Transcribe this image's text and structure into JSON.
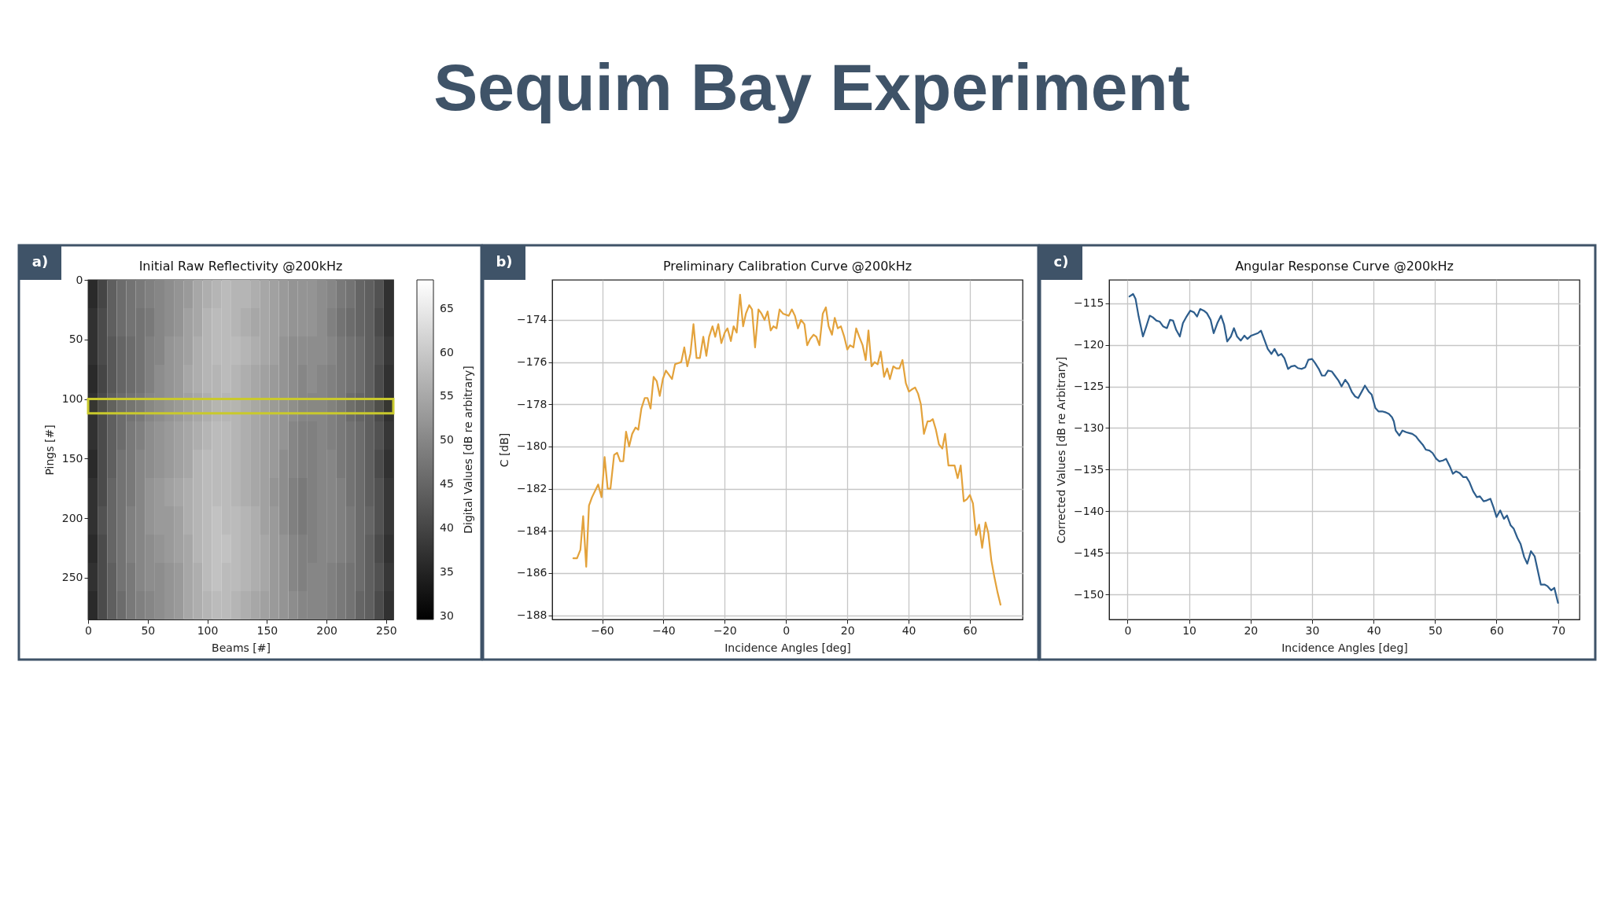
{
  "chart_data": [
    {
      "type": "other",
      "title": "Sequim Bay Experiment"
    },
    {
      "type": "heatmap",
      "title": "Initial Raw Reflectivity @200kHz",
      "xlabel": "Beams [#]",
      "ylabel": "Pings [#]",
      "clabel": "Digital Values [dB re arbitrary]",
      "annotations": [
        "a)"
      ],
      "xlim": [
        0,
        256
      ],
      "xticks": [
        0,
        50,
        100,
        150,
        200,
        250
      ],
      "ylim": [
        285,
        0
      ],
      "yticks": [
        0,
        50,
        100,
        150,
        200,
        250
      ],
      "clim": [
        29.6,
        68.3
      ],
      "cticks": [
        30,
        35,
        40,
        45,
        50,
        55,
        60,
        65
      ],
      "bands": [
        {
          "axis": "y",
          "from": 100,
          "to": 112,
          "color": "#c9c92c"
        }
      ],
      "cells": [
        [
          36,
          40,
          44,
          46,
          47,
          48,
          49,
          50,
          51,
          52,
          53,
          55,
          56,
          57,
          58,
          57,
          57,
          56,
          55,
          54,
          53,
          52,
          52,
          52,
          51,
          50,
          48,
          47,
          45,
          44,
          42,
          37
        ],
        [
          37,
          41,
          44,
          46,
          47,
          47,
          48,
          50,
          51,
          52,
          54,
          55,
          57,
          58,
          58,
          57,
          56,
          55,
          55,
          54,
          53,
          52,
          52,
          52,
          51,
          49,
          47,
          46,
          45,
          44,
          41,
          37
        ],
        [
          37,
          41,
          43,
          45,
          46,
          47,
          49,
          50,
          52,
          53,
          54,
          56,
          57,
          58,
          58,
          58,
          57,
          56,
          55,
          54,
          52,
          51,
          51,
          51,
          51,
          50,
          48,
          47,
          46,
          44,
          42,
          38
        ],
        [
          36,
          40,
          43,
          45,
          46,
          47,
          49,
          51,
          52,
          53,
          55,
          56,
          57,
          57,
          58,
          57,
          56,
          55,
          54,
          53,
          52,
          51,
          50,
          51,
          50,
          49,
          48,
          47,
          46,
          44,
          41,
          37
        ],
        [
          37,
          41,
          44,
          46,
          47,
          48,
          50,
          51,
          52,
          53,
          54,
          55,
          56,
          57,
          57,
          57,
          56,
          55,
          54,
          53,
          52,
          51,
          50,
          50,
          50,
          49,
          48,
          46,
          45,
          44,
          41,
          37
        ],
        [
          37,
          41,
          44,
          46,
          48,
          49,
          51,
          52,
          53,
          54,
          55,
          56,
          57,
          58,
          58,
          57,
          56,
          55,
          54,
          53,
          52,
          50,
          49,
          49,
          50,
          49,
          48,
          47,
          46,
          44,
          42,
          38
        ],
        [
          36,
          41,
          44,
          47,
          48,
          50,
          51,
          52,
          53,
          54,
          55,
          57,
          58,
          58,
          58,
          57,
          56,
          55,
          54,
          53,
          51,
          50,
          49,
          49,
          50,
          50,
          48,
          47,
          46,
          44,
          41,
          37
        ],
        [
          37,
          41,
          45,
          47,
          48,
          50,
          52,
          53,
          54,
          55,
          56,
          57,
          58,
          58,
          58,
          57,
          56,
          55,
          54,
          52,
          51,
          49,
          48,
          49,
          50,
          50,
          49,
          47,
          46,
          44,
          42,
          38
        ],
        [
          37,
          42,
          45,
          47,
          49,
          50,
          52,
          53,
          53,
          54,
          56,
          57,
          58,
          59,
          58,
          58,
          57,
          56,
          54,
          53,
          51,
          49,
          48,
          49,
          50,
          50,
          49,
          48,
          46,
          45,
          42,
          38
        ],
        [
          36,
          41,
          45,
          47,
          49,
          50,
          51,
          52,
          53,
          54,
          55,
          57,
          58,
          59,
          59,
          58,
          57,
          56,
          55,
          53,
          52,
          50,
          49,
          49,
          50,
          50,
          49,
          48,
          46,
          44,
          41,
          37
        ],
        [
          37,
          41,
          44,
          47,
          48,
          50,
          51,
          51,
          52,
          53,
          55,
          56,
          58,
          59,
          58,
          58,
          57,
          56,
          55,
          53,
          52,
          50,
          49,
          50,
          50,
          49,
          48,
          47,
          46,
          44,
          42,
          38
        ],
        [
          36,
          41,
          44,
          46,
          48,
          49,
          50,
          51,
          52,
          53,
          55,
          56,
          57,
          58,
          58,
          57,
          56,
          55,
          54,
          53,
          52,
          51,
          50,
          50,
          50,
          49,
          48,
          47,
          45,
          44,
          41,
          37
        ]
      ]
    },
    {
      "type": "line",
      "title": "Preliminary Calibration Curve @200kHz",
      "xlabel": "Incidence Angles [deg]",
      "ylabel": "C [dB]",
      "annotations": [
        "b)"
      ],
      "xlim": [
        -76.3,
        77.2
      ],
      "xticks": [
        -60,
        -40,
        -20,
        0,
        20,
        40,
        60
      ],
      "ylim": [
        -188.2,
        -172.1
      ],
      "yticks": [
        -188,
        -186,
        -184,
        -182,
        -180,
        -178,
        -176,
        -174
      ],
      "grid": true,
      "series": [
        {
          "color": "#e3a23b",
          "x": [
            -69.4,
            -68.2,
            -67.1,
            -66.2,
            -65.2,
            -64.3,
            -63.3,
            -61.3,
            -60.2,
            -59.2,
            -58.2,
            -57.3,
            -56.1,
            -55.1,
            -54.1,
            -53.1,
            -52.2,
            -51.2,
            -50.2,
            -49.1,
            -48.2,
            -47.2,
            -46.1,
            -45.2,
            -44.2,
            -43.2,
            -42.2,
            -41.2,
            -40.2,
            -39.2,
            -37.2,
            -36.2,
            -34.2,
            -33.2,
            -32.2,
            -31.2,
            -30.2,
            -29.2,
            -28.1,
            -27.0,
            -26.0,
            -25.1,
            -24.0,
            -23.1,
            -22.1,
            -21.1,
            -20.0,
            -19.1,
            -18.0,
            -17.1,
            -16.1,
            -15.0,
            -14.0,
            -13.1,
            -12.0,
            -11.1,
            -10.1,
            -9.0,
            -8.0,
            -7.0,
            -6.0,
            -5.0,
            -4.1,
            -3.1,
            -2.1,
            -1.0,
            0.9,
            1.9,
            2.9,
            3.9,
            4.9,
            6.0,
            6.9,
            7.9,
            9.0,
            9.9,
            10.9,
            12.0,
            13.0,
            13.9,
            15.0,
            15.9,
            16.9,
            17.9,
            19.0,
            20.0,
            20.9,
            22.0,
            22.9,
            23.9,
            25.0,
            26.0,
            26.9,
            27.9,
            28.9,
            29.9,
            30.9,
            32.0,
            33.0,
            33.9,
            35.0,
            36.0,
            37.0,
            38.0,
            39.1,
            40.1,
            41.0,
            42.1,
            43.1,
            44.0,
            45.0,
            46.2,
            47.0,
            47.9,
            48.9,
            49.9,
            51.0,
            51.9,
            53.0,
            54.0,
            55.0,
            56.0,
            57.0,
            58.0,
            59.0,
            60.0,
            61.0,
            62.0,
            63.0,
            64.0,
            65.1,
            66.0,
            67.0,
            68.0,
            69.0,
            70.0
          ],
          "values": [
            -185.3,
            -185.3,
            -184.9,
            -183.3,
            -185.7,
            -182.8,
            -182.4,
            -181.8,
            -182.4,
            -180.5,
            -182.0,
            -182.0,
            -180.4,
            -180.3,
            -180.7,
            -180.7,
            -179.3,
            -180.0,
            -179.4,
            -179.1,
            -179.2,
            -178.2,
            -177.7,
            -177.7,
            -178.2,
            -176.7,
            -176.9,
            -177.6,
            -176.8,
            -176.4,
            -176.8,
            -176.1,
            -176.0,
            -175.3,
            -176.2,
            -175.6,
            -174.2,
            -175.8,
            -175.8,
            -174.8,
            -175.7,
            -174.8,
            -174.3,
            -174.8,
            -174.2,
            -175.1,
            -174.6,
            -174.4,
            -175.0,
            -174.3,
            -174.6,
            -172.8,
            -174.3,
            -173.7,
            -173.3,
            -173.5,
            -175.3,
            -173.5,
            -173.7,
            -174.0,
            -173.6,
            -174.5,
            -174.3,
            -174.4,
            -173.5,
            -173.7,
            -173.8,
            -173.5,
            -173.8,
            -174.4,
            -174.0,
            -174.2,
            -175.2,
            -174.9,
            -174.7,
            -174.8,
            -175.2,
            -173.7,
            -173.4,
            -174.3,
            -174.7,
            -173.9,
            -174.4,
            -174.3,
            -174.8,
            -175.4,
            -175.2,
            -175.3,
            -174.4,
            -174.8,
            -175.2,
            -175.9,
            -174.5,
            -176.2,
            -176.0,
            -176.1,
            -175.5,
            -176.7,
            -176.3,
            -176.8,
            -176.2,
            -176.3,
            -176.3,
            -175.9,
            -177.0,
            -177.4,
            -177.3,
            -177.2,
            -177.5,
            -178.0,
            -179.4,
            -178.8,
            -178.8,
            -178.7,
            -179.2,
            -179.9,
            -180.1,
            -179.4,
            -180.9,
            -180.9,
            -180.9,
            -181.5,
            -180.9,
            -182.6,
            -182.5,
            -182.3,
            -182.7,
            -184.2,
            -183.7,
            -184.8,
            -183.6,
            -184.1,
            -185.4,
            -186.2,
            -186.9,
            -187.5
          ]
        }
      ]
    },
    {
      "type": "line",
      "title": "Angular Response Curve @200kHz",
      "xlabel": "Incidence Angles [deg]",
      "ylabel": "Corrected Values [dB re Arbitrary]",
      "annotations": [
        "c)"
      ],
      "xlim": [
        -3.0,
        73.5
      ],
      "xticks": [
        0,
        10,
        20,
        30,
        40,
        50,
        60,
        70
      ],
      "ylim": [
        -153.0,
        -112.2
      ],
      "yticks": [
        -150,
        -145,
        -140,
        -135,
        -130,
        -125,
        -120,
        -115
      ],
      "grid": true,
      "series": [
        {
          "color": "#2d5d8c",
          "x": [
            0.3,
            0.9,
            1.3,
            1.8,
            2.5,
            3.0,
            3.6,
            4.1,
            4.7,
            5.2,
            5.8,
            6.4,
            6.9,
            7.4,
            7.9,
            8.5,
            9.0,
            9.6,
            10.2,
            10.8,
            11.3,
            11.8,
            12.4,
            12.9,
            13.5,
            14.0,
            14.6,
            15.2,
            15.7,
            16.2,
            16.8,
            17.3,
            17.8,
            18.4,
            19.0,
            19.5,
            20.1,
            21.2,
            21.7,
            22.2,
            22.8,
            23.4,
            23.9,
            24.5,
            25.0,
            25.5,
            26.1,
            26.6,
            27.2,
            27.7,
            28.3,
            28.9,
            29.4,
            30.0,
            30.5,
            31.1,
            31.6,
            32.1,
            32.6,
            33.2,
            33.7,
            34.3,
            34.8,
            35.4,
            35.9,
            36.5,
            37.0,
            37.5,
            38.1,
            38.6,
            39.2,
            39.7,
            40.3,
            40.8,
            41.4,
            41.9,
            42.5,
            43.0,
            43.3,
            43.6,
            44.2,
            44.7,
            45.3,
            45.8,
            46.3,
            46.9,
            47.4,
            48.0,
            48.5,
            49.1,
            49.6,
            50.2,
            50.7,
            51.3,
            51.8,
            52.4,
            52.9,
            53.4,
            54.0,
            54.6,
            55.1,
            55.6,
            56.2,
            56.8,
            57.3,
            57.9,
            58.4,
            59.0,
            59.5,
            60.0,
            60.6,
            61.2,
            61.7,
            62.3,
            62.8,
            63.4,
            63.9,
            64.5,
            65.0,
            65.6,
            66.2,
            66.7,
            67.2,
            67.8,
            68.3,
            68.9,
            69.4,
            70.0
          ],
          "values": [
            -114.2,
            -113.9,
            -114.5,
            -116.6,
            -119.0,
            -117.9,
            -116.5,
            -116.7,
            -117.1,
            -117.2,
            -117.8,
            -118.0,
            -117.0,
            -117.1,
            -118.2,
            -119.0,
            -117.4,
            -116.6,
            -115.9,
            -116.1,
            -116.6,
            -115.7,
            -115.9,
            -116.2,
            -117.0,
            -118.6,
            -117.4,
            -116.5,
            -117.6,
            -119.6,
            -119.0,
            -118.0,
            -119.0,
            -119.5,
            -118.9,
            -119.3,
            -118.9,
            -118.6,
            -118.3,
            -119.3,
            -120.5,
            -121.1,
            -120.5,
            -121.3,
            -121.1,
            -121.6,
            -122.9,
            -122.6,
            -122.5,
            -122.8,
            -122.9,
            -122.7,
            -121.8,
            -121.7,
            -122.2,
            -122.9,
            -123.7,
            -123.7,
            -123.1,
            -123.2,
            -123.7,
            -124.3,
            -125.0,
            -124.2,
            -124.7,
            -125.7,
            -126.2,
            -126.4,
            -125.6,
            -124.9,
            -125.6,
            -126.0,
            -127.6,
            -128.0,
            -128.0,
            -128.1,
            -128.3,
            -128.7,
            -129.2,
            -130.3,
            -130.9,
            -130.3,
            -130.5,
            -130.6,
            -130.7,
            -131.0,
            -131.5,
            -132.0,
            -132.6,
            -132.7,
            -133.0,
            -133.7,
            -134.0,
            -133.9,
            -133.7,
            -134.6,
            -135.5,
            -135.2,
            -135.4,
            -135.9,
            -135.9,
            -136.5,
            -137.6,
            -138.3,
            -138.2,
            -138.8,
            -138.7,
            -138.5,
            -139.5,
            -140.7,
            -139.9,
            -140.9,
            -140.5,
            -141.7,
            -142.1,
            -143.2,
            -143.9,
            -145.5,
            -146.3,
            -144.8,
            -145.4,
            -147.1,
            -148.8,
            -148.8,
            -149.0,
            -149.5,
            -149.2,
            -151.0
          ]
        }
      ]
    }
  ]
}
